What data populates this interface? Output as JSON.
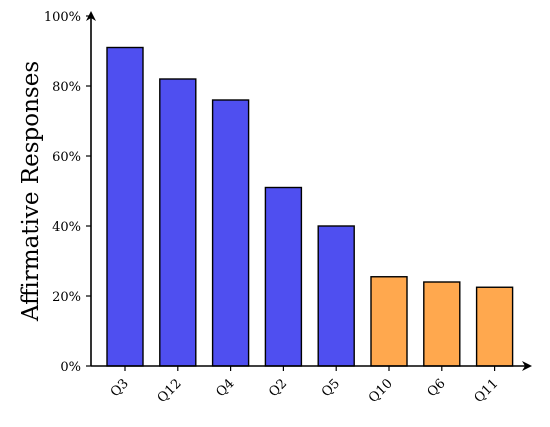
{
  "chart_data": {
    "type": "bar",
    "title": "",
    "xlabel": "",
    "ylabel": "Affirmative Responses",
    "categories": [
      "Q3",
      "Q12",
      "Q4",
      "Q2",
      "Q5",
      "Q10",
      "Q6",
      "Q11"
    ],
    "values": [
      91,
      82,
      76,
      51,
      40,
      25.5,
      24,
      22.5
    ],
    "bar_colors": [
      "#4f4ff0",
      "#4f4ff0",
      "#4f4ff0",
      "#4f4ff0",
      "#4f4ff0",
      "#ffa84e",
      "#ffa84e",
      "#ffa84e"
    ],
    "ylim": [
      0,
      100
    ],
    "yticks": [
      0,
      20,
      40,
      60,
      80,
      100
    ],
    "ytick_labels": [
      "0%",
      "20%",
      "40%",
      "60%",
      "80%",
      "100%"
    ],
    "grid": false,
    "legend": "none"
  }
}
